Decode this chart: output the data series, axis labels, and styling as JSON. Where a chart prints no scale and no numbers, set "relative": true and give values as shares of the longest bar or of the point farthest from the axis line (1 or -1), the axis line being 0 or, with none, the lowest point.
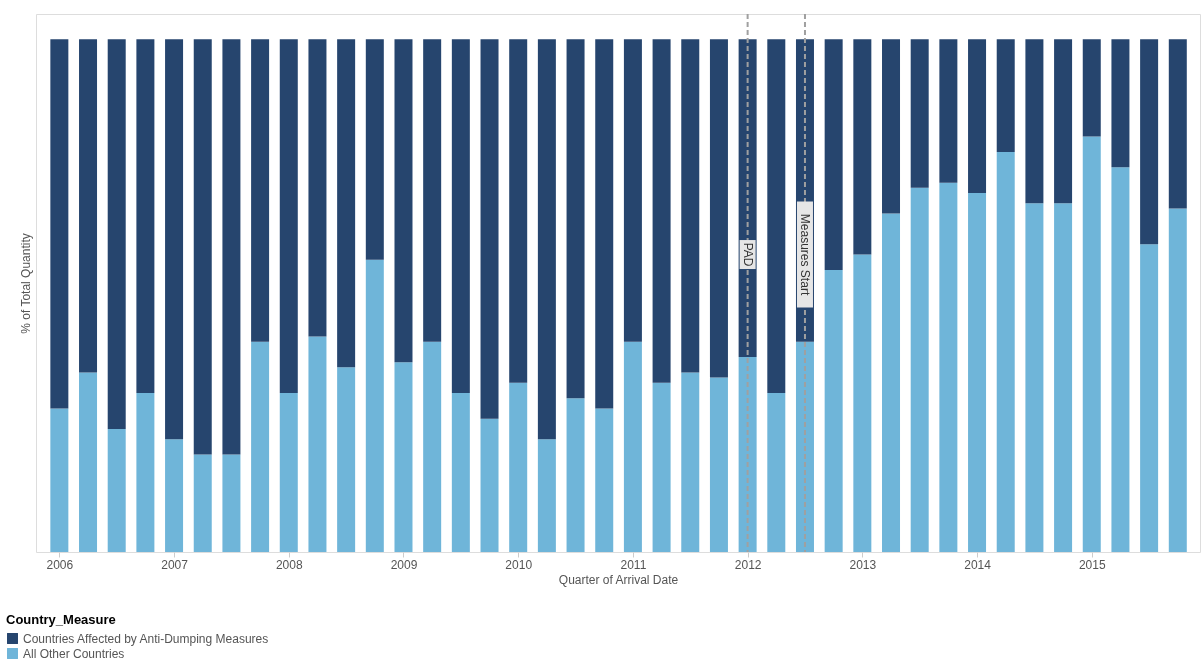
{
  "chart_data": {
    "type": "bar",
    "stacked": true,
    "relative": true,
    "xlabel": "Quarter of Arrival Date",
    "ylabel": "% of Total Quantity",
    "legend_title": "Country_Measure",
    "legend": "bottom left",
    "grid": false,
    "x": [
      2006,
      2006.25,
      2006.5,
      2006.75,
      2007,
      2007.25,
      2007.5,
      2007.75,
      2008,
      2008.25,
      2008.5,
      2008.75,
      2009,
      2009.25,
      2009.5,
      2009.75,
      2010,
      2010.25,
      2010.5,
      2010.75,
      2011,
      2011.25,
      2011.5,
      2011.75,
      2012,
      2012.25,
      2012.5,
      2012.75,
      2013,
      2013.25,
      2013.5,
      2013.75,
      2014,
      2014.25,
      2014.5,
      2014.75,
      2015,
      2015.25,
      2015.5,
      2015.75
    ],
    "xlim": [
      2005.84,
      2015.9
    ],
    "xticks": [
      2006,
      2007,
      2008,
      2009,
      2010,
      2011,
      2012,
      2013,
      2014,
      2015
    ],
    "series": [
      {
        "name": "All Other Countries",
        "color": "#6fb5d9",
        "values": [
          0.28,
          0.35,
          0.24,
          0.31,
          0.22,
          0.19,
          0.19,
          0.41,
          0.31,
          0.42,
          0.36,
          0.57,
          0.37,
          0.41,
          0.31,
          0.26,
          0.33,
          0.22,
          0.3,
          0.28,
          0.41,
          0.33,
          0.35,
          0.34,
          0.38,
          0.31,
          0.41,
          0.55,
          0.58,
          0.66,
          0.71,
          0.72,
          0.7,
          0.78,
          0.68,
          0.68,
          0.81,
          0.75,
          0.6,
          0.67
        ]
      },
      {
        "name": "Countries Affected by Anti-Dumping Measures",
        "color": "#26456e",
        "values": [
          0.72,
          0.65,
          0.76,
          0.69,
          0.78,
          0.81,
          0.81,
          0.59,
          0.69,
          0.58,
          0.64,
          0.43,
          0.63,
          0.59,
          0.69,
          0.74,
          0.67,
          0.78,
          0.7,
          0.72,
          0.59,
          0.67,
          0.65,
          0.66,
          0.62,
          0.69,
          0.59,
          0.45,
          0.42,
          0.34,
          0.29,
          0.28,
          0.3,
          0.22,
          0.32,
          0.32,
          0.19,
          0.25,
          0.4,
          0.33
        ]
      }
    ],
    "ref_lines": [
      {
        "axis": "x",
        "value": 2012,
        "label": "PAD",
        "color": "#a0a0a0",
        "line_style": "dashed"
      },
      {
        "axis": "x",
        "value": 2012.5,
        "label": "Measures Start",
        "color": "#a0a0a0",
        "line_style": "dashed"
      }
    ]
  }
}
